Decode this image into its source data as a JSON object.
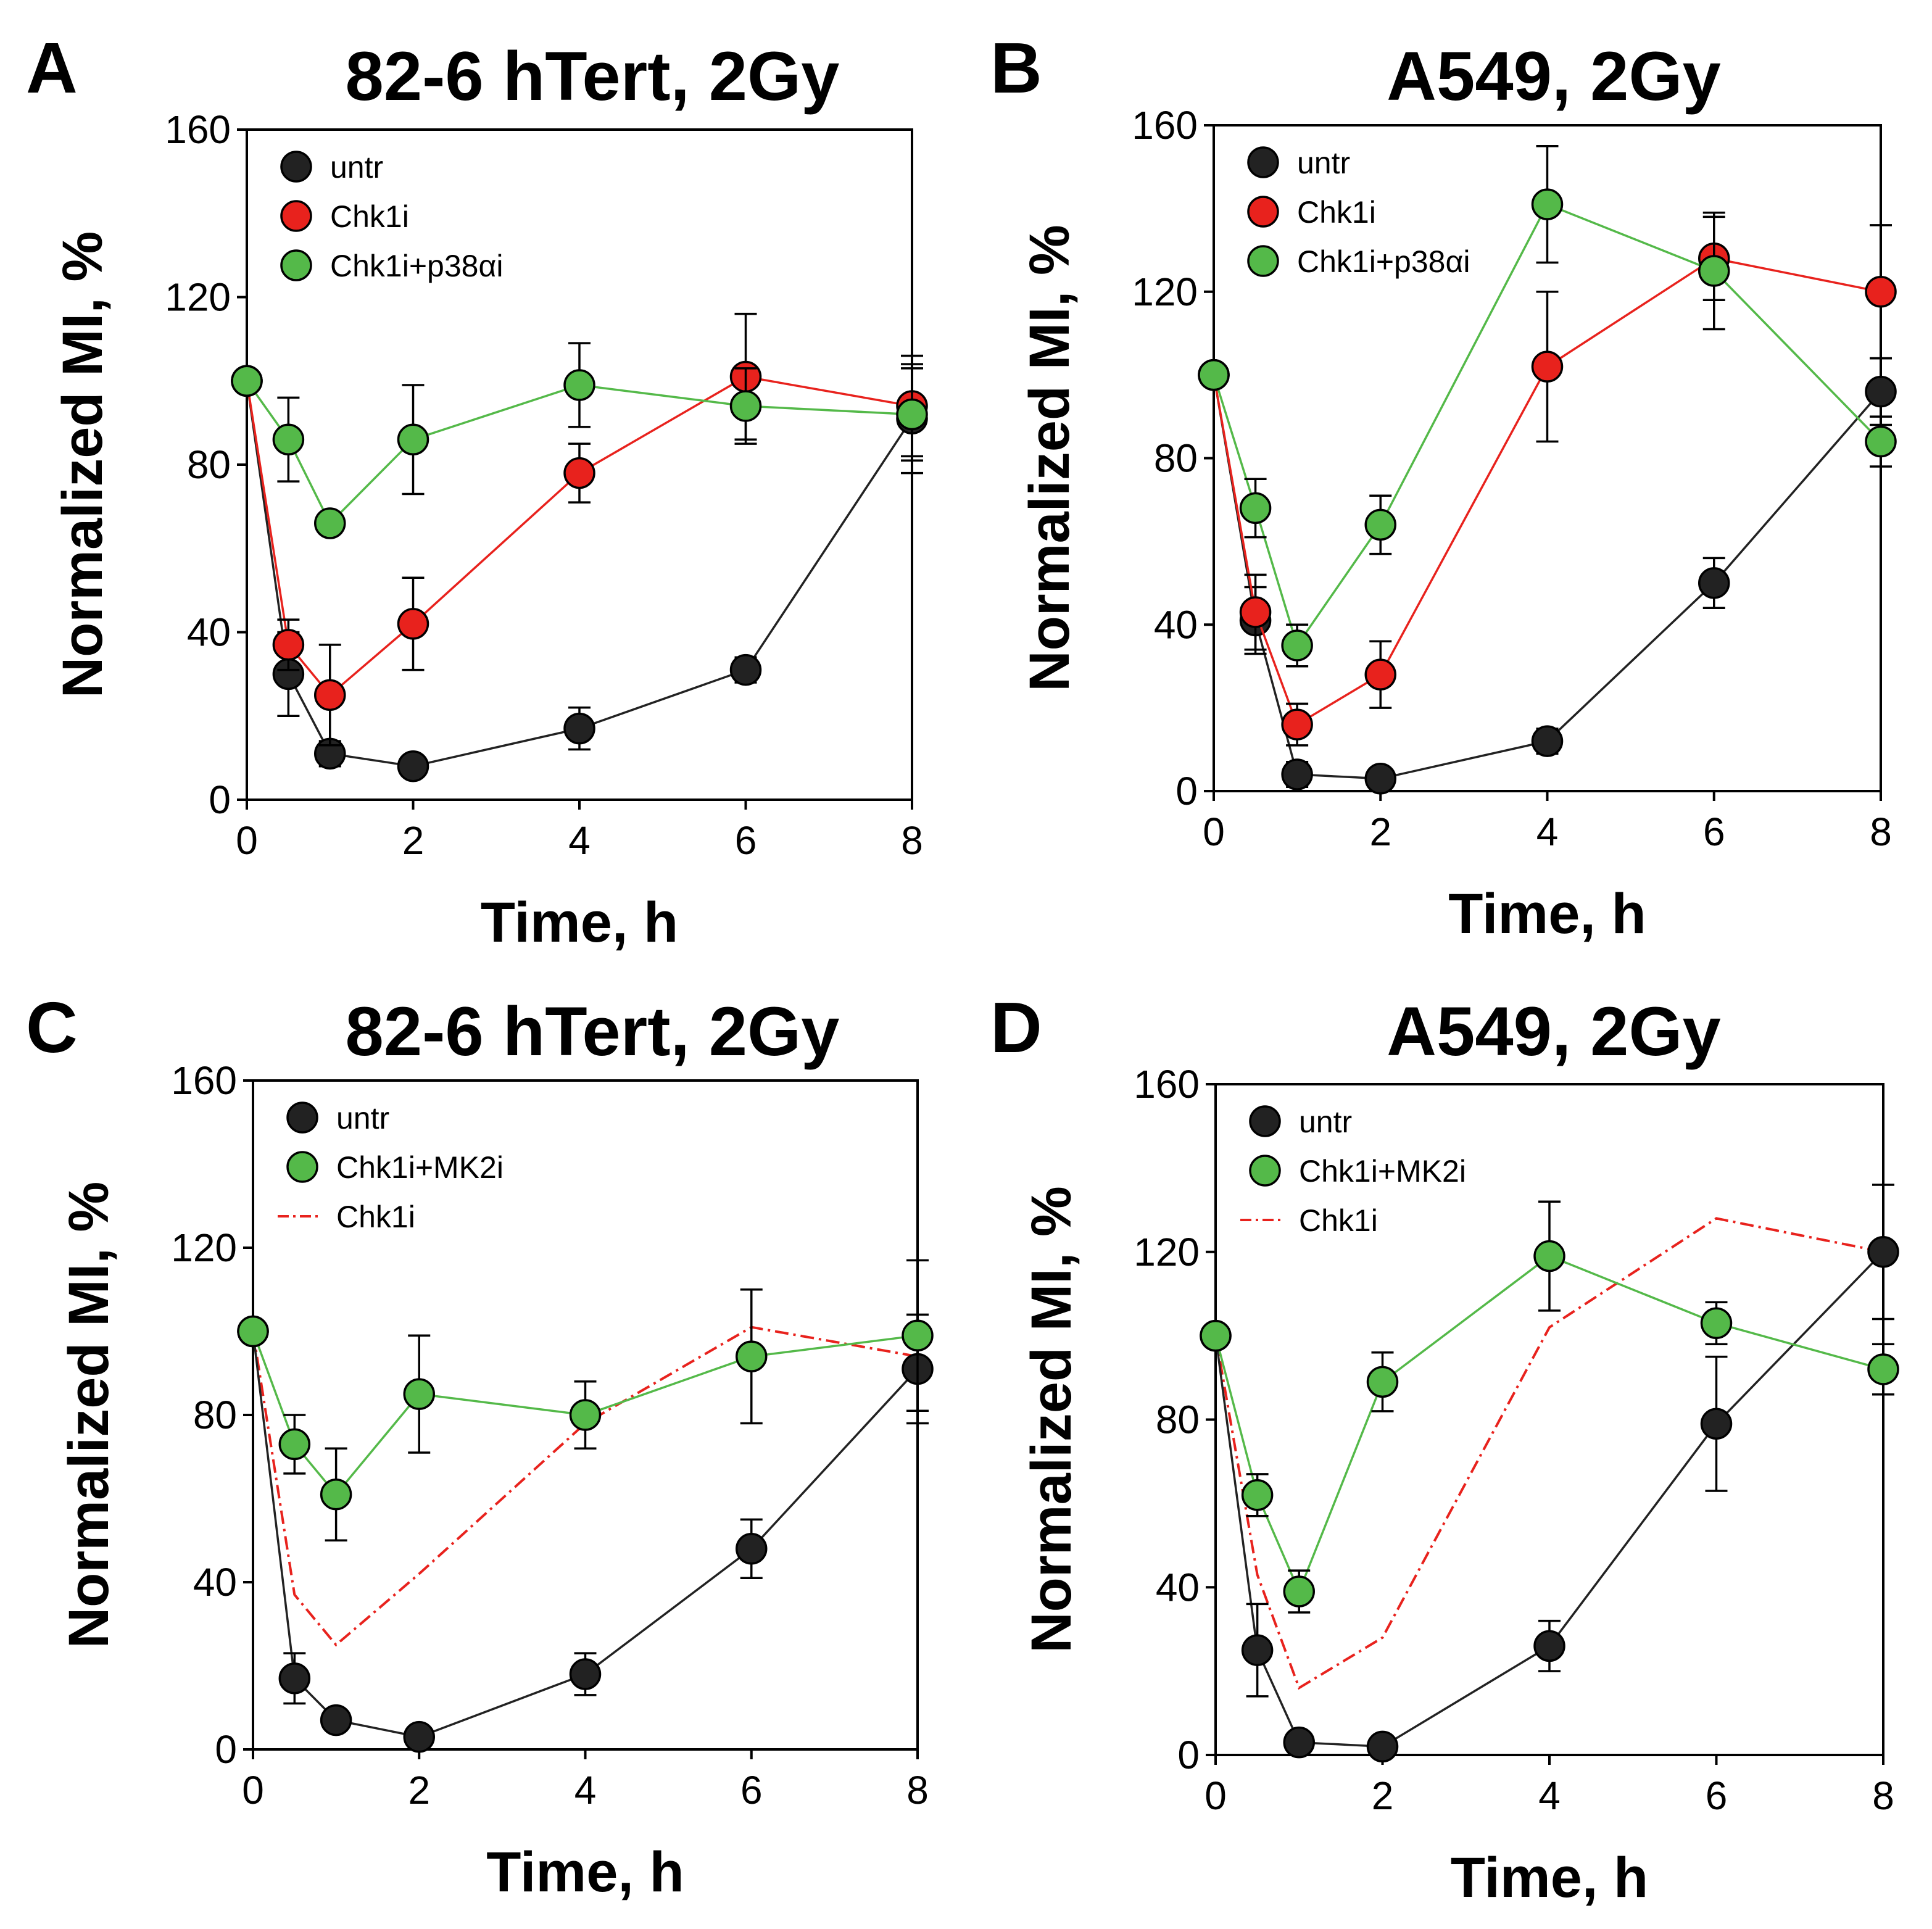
{
  "chart_data": [
    {
      "panel": "A",
      "title": "82-6 hTert, 2Gy",
      "type": "line",
      "xlabel": "Time, h",
      "ylabel": "Normalized MI, %",
      "xlim": [
        0,
        8
      ],
      "ylim": [
        0,
        160
      ],
      "xticks": [
        0,
        2,
        4,
        6,
        8
      ],
      "yticks": [
        0,
        40,
        80,
        120,
        160
      ],
      "legend_position": "top-left",
      "series": [
        {
          "name": "untr",
          "style": "marker",
          "color": "#222222",
          "x": [
            0,
            0.5,
            1,
            2,
            4,
            6,
            8
          ],
          "values": [
            100,
            30,
            11,
            8,
            17,
            31,
            91
          ],
          "errors": [
            0,
            10,
            3,
            2,
            5,
            3,
            13
          ]
        },
        {
          "name": "Chk1i",
          "style": "marker",
          "color": "#e8221d",
          "x": [
            0,
            0.5,
            1,
            2,
            4,
            6,
            8
          ],
          "values": [
            100,
            37,
            25,
            42,
            78,
            101,
            94
          ],
          "errors": [
            0,
            6,
            12,
            11,
            7,
            15,
            12
          ]
        },
        {
          "name": "Chk1i+p38αi",
          "style": "marker",
          "color": "#54b949",
          "x": [
            0,
            0.5,
            1,
            2,
            4,
            6,
            8
          ],
          "values": [
            100,
            86,
            66,
            86,
            99,
            94,
            92
          ],
          "errors": [
            0,
            10,
            2,
            13,
            10,
            9,
            11
          ]
        }
      ]
    },
    {
      "panel": "B",
      "title": "A549, 2Gy",
      "type": "line",
      "xlabel": "Time, h",
      "ylabel": "Normalized MI, %",
      "xlim": [
        0,
        8
      ],
      "ylim": [
        0,
        160
      ],
      "xticks": [
        0,
        2,
        4,
        6,
        8
      ],
      "yticks": [
        0,
        40,
        80,
        120,
        160
      ],
      "legend_position": "top-left",
      "series": [
        {
          "name": "untr",
          "style": "marker",
          "color": "#222222",
          "x": [
            0,
            0.5,
            1,
            2,
            4,
            6,
            8
          ],
          "values": [
            100,
            41,
            4,
            3,
            12,
            50,
            96
          ],
          "errors": [
            0,
            8,
            3,
            1,
            3,
            6,
            8
          ]
        },
        {
          "name": "Chk1i",
          "style": "marker",
          "color": "#e8221d",
          "x": [
            0,
            0.5,
            1,
            2,
            4,
            6,
            8
          ],
          "values": [
            100,
            43,
            16,
            28,
            102,
            128,
            120
          ],
          "errors": [
            0,
            9,
            5,
            8,
            18,
            10,
            16
          ]
        },
        {
          "name": "Chk1i+p38αi",
          "style": "marker",
          "color": "#54b949",
          "x": [
            0,
            0.5,
            1,
            2,
            4,
            6,
            8
          ],
          "values": [
            100,
            68,
            35,
            64,
            141,
            125,
            84
          ],
          "errors": [
            0,
            7,
            5,
            7,
            14,
            14,
            6
          ]
        }
      ]
    },
    {
      "panel": "C",
      "title": "82-6 hTert, 2Gy",
      "type": "line",
      "xlabel": "Time, h",
      "ylabel": "Normalized MI, %",
      "xlim": [
        0,
        8
      ],
      "ylim": [
        0,
        160
      ],
      "xticks": [
        0,
        2,
        4,
        6,
        8
      ],
      "yticks": [
        0,
        40,
        80,
        120,
        160
      ],
      "legend_position": "top-left",
      "series": [
        {
          "name": "untr",
          "style": "marker",
          "color": "#222222",
          "x": [
            0,
            0.5,
            1,
            2,
            4,
            6,
            8
          ],
          "values": [
            100,
            17,
            7,
            3,
            18,
            48,
            91
          ],
          "errors": [
            0,
            6,
            2,
            1,
            5,
            7,
            13
          ]
        },
        {
          "name": "Chk1i+MK2i",
          "style": "marker",
          "color": "#54b949",
          "x": [
            0,
            0.5,
            1,
            2,
            4,
            6,
            8
          ],
          "values": [
            100,
            73,
            61,
            85,
            80,
            94,
            99
          ],
          "errors": [
            0,
            7,
            11,
            14,
            8,
            16,
            18
          ]
        },
        {
          "name": "Chk1i",
          "style": "dashed",
          "color": "#e8221d",
          "x": [
            0,
            0.5,
            1,
            2,
            4,
            6,
            8
          ],
          "values": [
            100,
            37,
            25,
            42,
            78,
            101,
            94
          ]
        }
      ]
    },
    {
      "panel": "D",
      "title": "A549, 2Gy",
      "type": "line",
      "xlabel": "Time, h",
      "ylabel": "Normalized MI, %",
      "xlim": [
        0,
        8
      ],
      "ylim": [
        0,
        160
      ],
      "xticks": [
        0,
        2,
        4,
        6,
        8
      ],
      "yticks": [
        0,
        40,
        80,
        120,
        160
      ],
      "legend_position": "top-left",
      "series": [
        {
          "name": "untr",
          "style": "marker",
          "color": "#222222",
          "x": [
            0,
            0.5,
            1,
            2,
            4,
            6,
            8
          ],
          "values": [
            100,
            25,
            3,
            2,
            26,
            79,
            120
          ],
          "errors": [
            0,
            11,
            1,
            1,
            6,
            16,
            16
          ]
        },
        {
          "name": "Chk1i+MK2i",
          "style": "marker",
          "color": "#54b949",
          "x": [
            0,
            0.5,
            1,
            2,
            4,
            6,
            8
          ],
          "values": [
            100,
            62,
            39,
            89,
            119,
            103,
            92
          ],
          "errors": [
            0,
            5,
            5,
            7,
            13,
            5,
            6
          ]
        },
        {
          "name": "Chk1i",
          "style": "dashed",
          "color": "#e8221d",
          "x": [
            0,
            0.5,
            1,
            2,
            4,
            6,
            8
          ],
          "values": [
            100,
            43,
            16,
            28,
            102,
            128,
            120
          ]
        }
      ]
    }
  ]
}
